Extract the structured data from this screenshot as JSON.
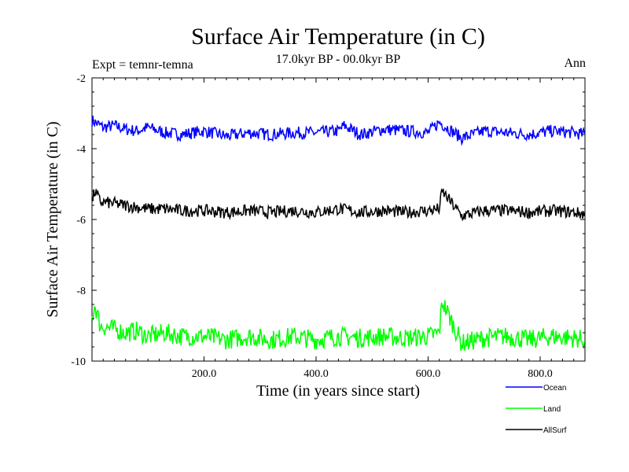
{
  "chart_data": {
    "type": "line",
    "title": "Surface Air Temperature (in C)",
    "subtitle": "17.0kyr BP - 00.0kyr BP",
    "left_note": "Expt = temnr-temna",
    "right_note": "Ann",
    "xlabel": "Time (in years since start)",
    "ylabel": "Surface Air Temperature (in C)",
    "xlim": [
      0,
      880
    ],
    "ylim": [
      -10,
      -2
    ],
    "xticks": [
      200,
      400,
      600,
      800
    ],
    "xtick_labels": [
      "200.0",
      "400.0",
      "600.0",
      "800.0"
    ],
    "yticks": [
      -10,
      -8,
      -6,
      -4,
      -2
    ],
    "ytick_labels": [
      "-10",
      "-8",
      "-6",
      "-4",
      "-2"
    ],
    "legend_position": "bottom-right",
    "series": [
      {
        "name": "Ocean",
        "color": "#0000ff",
        "x": [
          0,
          10,
          20,
          40,
          60,
          80,
          100,
          130,
          160,
          200,
          240,
          280,
          320,
          360,
          400,
          440,
          450,
          480,
          520,
          560,
          600,
          620,
          660,
          700,
          740,
          780,
          820,
          860,
          880
        ],
        "values": [
          -3.2,
          -3.3,
          -3.4,
          -3.35,
          -3.45,
          -3.5,
          -3.4,
          -3.55,
          -3.6,
          -3.5,
          -3.65,
          -3.55,
          -3.6,
          -3.55,
          -3.55,
          -3.5,
          -3.35,
          -3.6,
          -3.45,
          -3.5,
          -3.55,
          -3.25,
          -3.7,
          -3.5,
          -3.55,
          -3.6,
          -3.5,
          -3.55,
          -3.6
        ]
      },
      {
        "name": "Land",
        "color": "#00ff00",
        "x": [
          0,
          5,
          15,
          40,
          60,
          80,
          100,
          130,
          160,
          200,
          240,
          280,
          320,
          360,
          400,
          440,
          480,
          520,
          560,
          600,
          620,
          625,
          660,
          700,
          740,
          780,
          820,
          860,
          880
        ],
        "values": [
          -8.8,
          -8.4,
          -9.0,
          -9.1,
          -9.2,
          -9.15,
          -9.3,
          -9.2,
          -9.3,
          -9.3,
          -9.4,
          -9.3,
          -9.4,
          -9.3,
          -9.4,
          -9.3,
          -9.35,
          -9.3,
          -9.35,
          -9.3,
          -9.2,
          -8.3,
          -9.5,
          -9.35,
          -9.3,
          -9.4,
          -9.3,
          -9.35,
          -9.4
        ]
      },
      {
        "name": "AllSurf",
        "color": "#000000",
        "x": [
          0,
          5,
          15,
          40,
          60,
          80,
          100,
          130,
          160,
          200,
          240,
          280,
          320,
          360,
          400,
          440,
          480,
          520,
          560,
          600,
          620,
          625,
          660,
          700,
          740,
          780,
          820,
          860,
          880
        ],
        "values": [
          -5.5,
          -5.2,
          -5.5,
          -5.55,
          -5.6,
          -5.65,
          -5.7,
          -5.7,
          -5.75,
          -5.75,
          -5.8,
          -5.75,
          -5.8,
          -5.75,
          -5.8,
          -5.7,
          -5.8,
          -5.75,
          -5.8,
          -5.75,
          -5.7,
          -5.2,
          -5.9,
          -5.75,
          -5.75,
          -5.8,
          -5.75,
          -5.8,
          -5.85
        ]
      }
    ]
  }
}
